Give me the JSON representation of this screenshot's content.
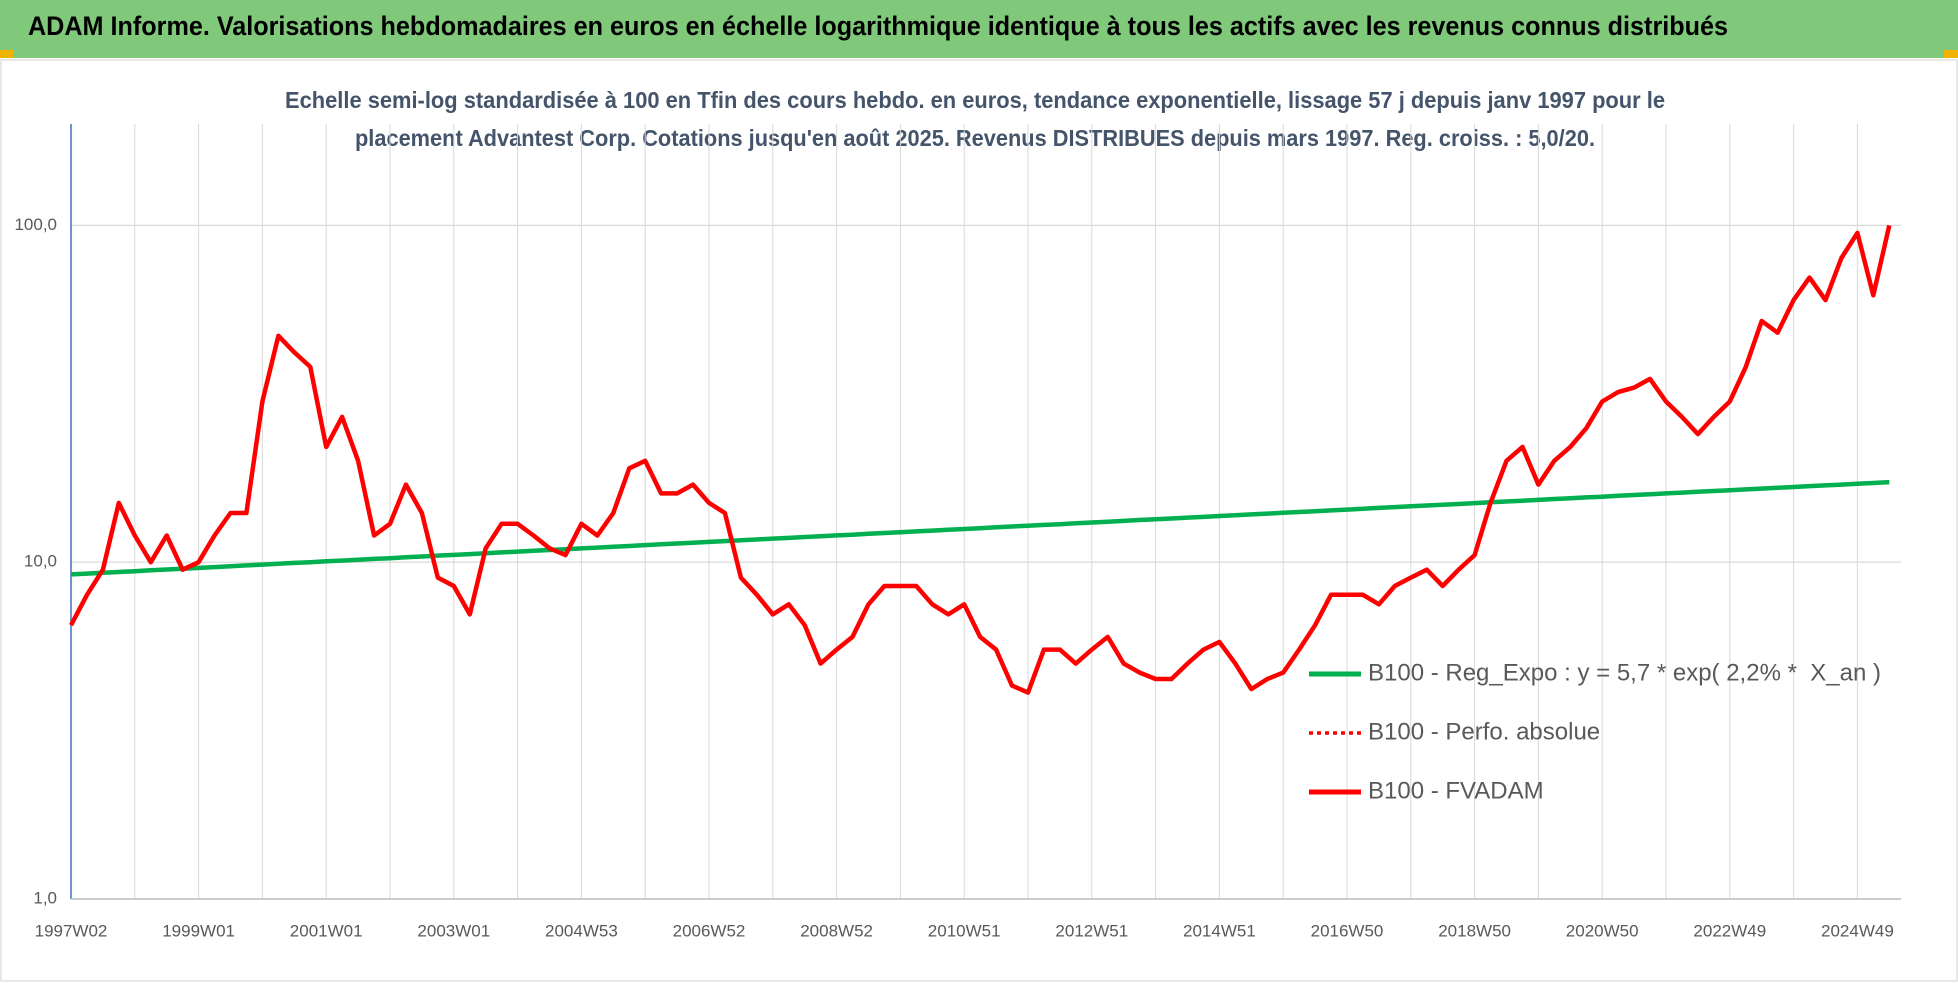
{
  "chart_data": {
    "type": "line",
    "title": "ADAM Informe. Valorisations hebdomadaires en euros en échelle logarithmique identique à tous les actifs avec les revenus connus distribués",
    "subtitle": [
      "Echelle semi-log standardisée à 100 en Tfin des cours hebdo. en euros, tendance exponentielle, lissage 57 j depuis janv 1997 pour le",
      "placement Advantest Corp. Cotations jusqu'en août 2025.  Revenus DISTRIBUES depuis mars 1997. Reg. croiss. : 5,0/20."
    ],
    "log_scale": true,
    "grid": true,
    "ylim": [
      1,
      200
    ],
    "yticks": [
      {
        "value": 1,
        "label": "1,0"
      },
      {
        "value": 10,
        "label": "10,0"
      },
      {
        "value": 100,
        "label": "100,0"
      }
    ],
    "categories": [
      "1997W02",
      null,
      null,
      null,
      null,
      null,
      null,
      null,
      "1999W01",
      null,
      null,
      null,
      null,
      null,
      null,
      null,
      "2001W01",
      null,
      null,
      null,
      null,
      null,
      null,
      null,
      "2003W01",
      null,
      null,
      null,
      null,
      null,
      null,
      null,
      "2004W53",
      null,
      null,
      null,
      null,
      null,
      null,
      null,
      "2006W52",
      null,
      null,
      null,
      null,
      null,
      null,
      null,
      "2008W52",
      null,
      null,
      null,
      null,
      null,
      null,
      null,
      "2010W51",
      null,
      null,
      null,
      null,
      null,
      null,
      null,
      "2012W51",
      null,
      null,
      null,
      null,
      null,
      null,
      null,
      "2014W51",
      null,
      null,
      null,
      null,
      null,
      null,
      null,
      "2016W50",
      null,
      null,
      null,
      null,
      null,
      null,
      null,
      "2018W50",
      null,
      null,
      null,
      null,
      null,
      null,
      null,
      "2020W50",
      null,
      null,
      null,
      null,
      null,
      null,
      null,
      "2022W49",
      null,
      null,
      null,
      null,
      null,
      null,
      null,
      "2024W49",
      null,
      null
    ],
    "series": [
      {
        "name": "B100 - Reg_Expo : y = 5,7 * exp( 2,2% *  X_an )",
        "color": "#00b050",
        "style": "solid",
        "values": [
          9.2,
          9.25,
          9.3,
          9.35,
          9.4,
          9.46,
          9.51,
          9.56,
          9.62,
          9.67,
          9.73,
          9.78,
          9.84,
          9.89,
          9.95,
          10.0,
          10.06,
          10.11,
          10.17,
          10.23,
          10.28,
          10.34,
          10.4,
          10.46,
          10.51,
          10.57,
          10.63,
          10.69,
          10.75,
          10.81,
          10.87,
          10.93,
          10.99,
          11.05,
          11.11,
          11.17,
          11.24,
          11.3,
          11.36,
          11.42,
          11.49,
          11.55,
          11.62,
          11.68,
          11.75,
          11.81,
          11.88,
          11.94,
          12.01,
          12.07,
          12.14,
          12.21,
          12.28,
          12.34,
          12.41,
          12.48,
          12.55,
          12.62,
          12.69,
          12.76,
          12.83,
          12.9,
          12.97,
          13.05,
          13.12,
          13.19,
          13.26,
          13.34,
          13.41,
          13.48,
          13.56,
          13.63,
          13.71,
          13.79,
          13.86,
          13.94,
          14.02,
          14.09,
          14.17,
          14.25,
          14.33,
          14.41,
          14.49,
          14.57,
          14.65,
          14.73,
          14.81,
          14.89,
          14.98,
          15.06,
          15.14,
          15.23,
          15.31,
          15.4,
          15.48,
          15.57,
          15.65,
          15.74,
          15.83,
          15.91,
          16.0,
          16.09,
          16.18,
          16.27,
          16.36,
          16.45,
          16.54,
          16.63,
          16.72,
          16.82,
          16.91,
          17.0,
          17.1,
          17.19,
          17.29
        ]
      },
      {
        "name": "B100 - Perfo. absolue",
        "color": "#ff0000",
        "style": "dotted",
        "values": [
          null,
          null,
          null,
          null,
          null,
          null,
          null,
          null,
          null,
          null,
          null,
          null,
          null,
          null,
          null,
          null,
          null,
          null,
          null,
          null,
          null,
          null,
          null,
          null,
          null,
          null,
          null,
          null,
          null,
          null,
          null,
          null,
          null,
          null,
          null,
          null,
          null,
          null,
          null,
          null,
          null,
          null,
          null,
          null,
          null,
          null,
          null,
          null,
          null,
          null,
          null,
          null,
          null,
          null,
          null,
          null,
          null,
          null,
          null,
          null,
          null,
          null,
          null,
          null,
          null,
          null,
          null,
          null,
          null,
          null,
          null,
          null,
          null,
          null,
          null,
          null,
          null,
          null,
          null,
          null,
          null,
          null,
          null,
          null,
          null,
          null,
          null,
          null,
          null,
          null,
          null,
          null,
          null,
          null,
          null,
          null,
          null,
          null,
          null,
          null,
          null,
          null,
          null,
          null,
          null,
          null,
          null,
          null,
          null,
          null,
          null,
          null,
          null,
          null,
          null
        ]
      },
      {
        "name": "B100 - FVADAM",
        "color": "#ff0000",
        "style": "solid",
        "values": [
          6.5,
          8,
          9.5,
          15,
          12,
          10,
          12,
          9.5,
          10,
          12,
          14,
          14,
          30,
          47,
          42,
          38,
          22,
          27,
          20,
          12,
          13,
          17,
          14,
          9,
          8.5,
          7,
          11,
          13,
          13,
          12,
          11,
          10.5,
          13,
          12,
          14,
          19,
          20,
          16,
          16,
          17,
          15,
          14,
          9,
          8,
          7,
          7.5,
          6.5,
          5,
          5.5,
          6,
          7.5,
          8.5,
          8.5,
          8.5,
          7.5,
          7,
          7.5,
          6,
          5.5,
          4.3,
          4.1,
          5.5,
          5.5,
          5,
          5.5,
          6,
          5,
          4.7,
          4.5,
          4.5,
          5,
          5.5,
          5.8,
          5,
          4.2,
          4.5,
          4.7,
          5.5,
          6.5,
          8,
          8,
          8,
          7.5,
          8.5,
          9,
          9.5,
          8.5,
          9.5,
          10.5,
          15,
          20,
          22,
          17,
          20,
          22,
          25,
          30,
          32,
          33,
          35,
          30,
          27,
          24,
          27,
          30,
          38,
          52,
          48,
          60,
          70,
          60,
          80,
          95,
          62,
          100
        ]
      }
    ]
  }
}
